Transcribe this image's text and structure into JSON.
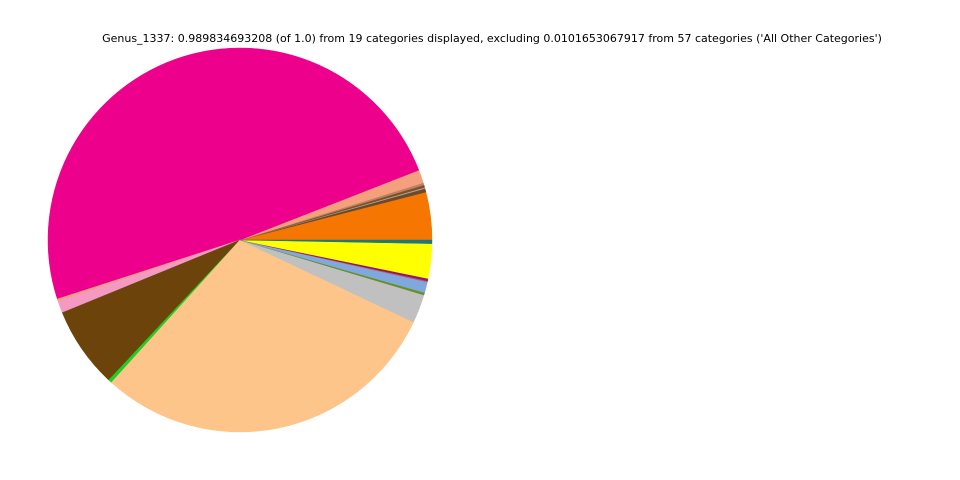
{
  "chart_data": {
    "type": "pie",
    "title": "Genus_1337: 0.989834693208 (of 1.0) from 19 categories displayed, excluding 0.0101653067917 from 57 categories ('All Other Categories')",
    "categories": [
      null,
      null,
      null,
      null,
      null,
      null,
      null,
      null,
      null,
      null,
      null,
      null,
      null,
      null,
      null,
      null,
      null,
      null,
      null
    ],
    "values": [
      0.04,
      0.003,
      0.001,
      0.002,
      0.002,
      0.011,
      0.488,
      0.002,
      0.01,
      0.068,
      0.003,
      0.295,
      0.024,
      0.002,
      0.009,
      0.001,
      0.002,
      0.029,
      0.003
    ],
    "colors": [
      "#f57600",
      "#6b4a2a",
      "#b0a090",
      "#7a5030",
      "#c08060",
      "#f4a07c",
      "#ec008c",
      "#f0a080",
      "#f49ac2",
      "#6b430b",
      "#22cc22",
      "#fdc58a",
      "#c0c0c0",
      "#6b8e23",
      "#7fa8dc",
      "#c06080",
      "#8b1a6b",
      "#ffff00",
      "#1a7a7a"
    ]
  }
}
